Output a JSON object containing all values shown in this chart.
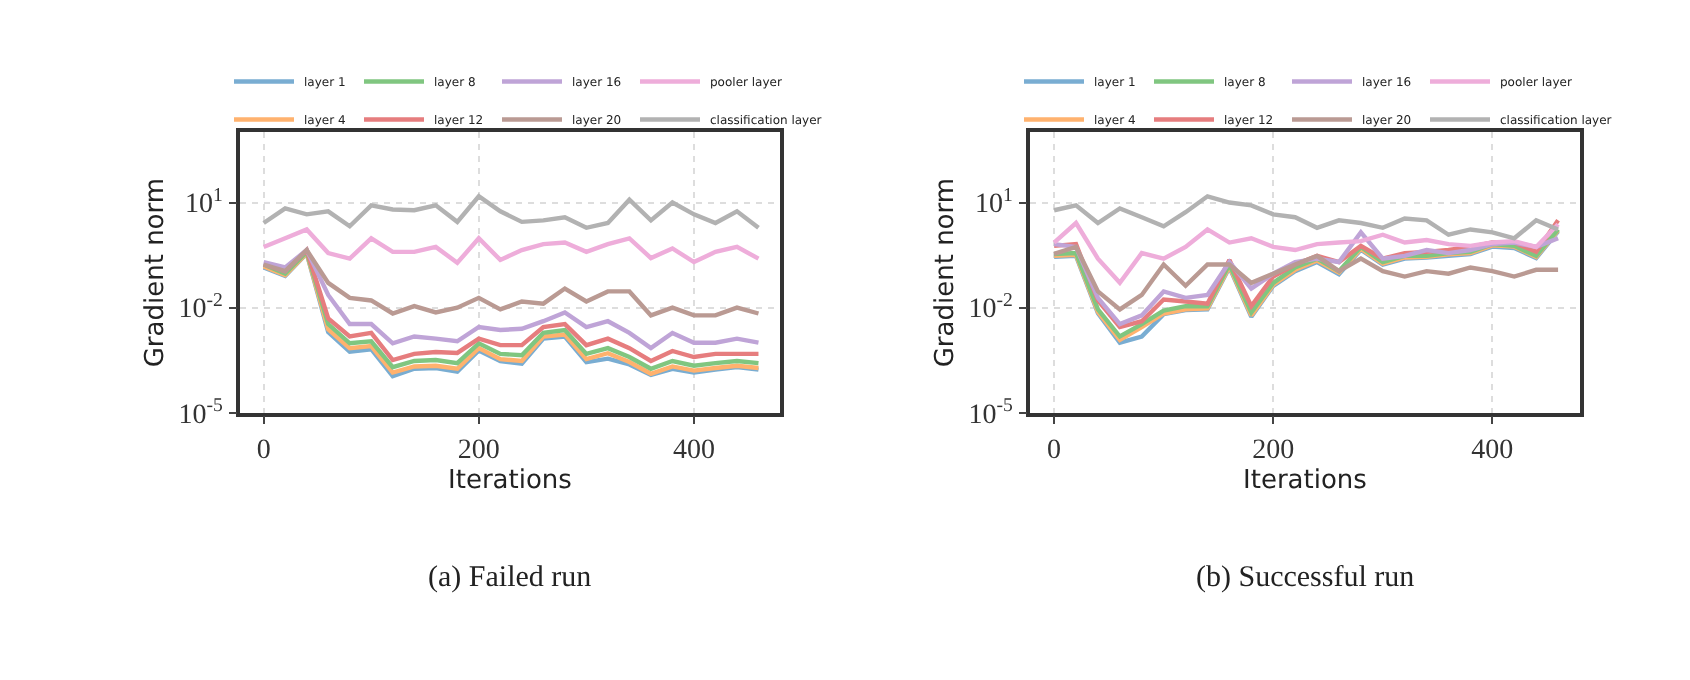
{
  "chart_data": [
    {
      "type": "line",
      "title": "(a) Failed run",
      "xlabel": "Iterations",
      "ylabel": "Gradient norm",
      "log": "y",
      "grid": true,
      "legend": "top",
      "x": [
        0,
        20,
        40,
        60,
        80,
        100,
        120,
        140,
        160,
        180,
        200,
        220,
        240,
        260,
        280,
        300,
        320,
        340,
        360,
        380,
        400,
        420,
        440,
        460
      ],
      "xlim": [
        -22,
        480
      ],
      "xticks": [
        0,
        200,
        400
      ],
      "ylim": [
        1e-05,
        1000
      ],
      "yticks": [
        {
          "value": 1e-05,
          "label": "10$^{-5}$"
        },
        {
          "value": 0.01,
          "label": "10$^{-2}$"
        },
        {
          "value": 10,
          "label": "10$^{1}$"
        }
      ],
      "series": [
        {
          "name": "layer 1",
          "color": "#79add2",
          "values": [
            0.14,
            0.08,
            0.35,
            0.002,
            0.00055,
            0.00065,
            0.00011,
            0.00018,
            0.00019,
            0.00015,
            0.0006,
            0.0003,
            0.00025,
            0.0013,
            0.0015,
            0.00028,
            0.00035,
            0.00024,
            0.00012,
            0.00018,
            0.00014,
            0.00017,
            0.0002,
            0.00017
          ]
        },
        {
          "name": "layer 4",
          "color": "#ffb26e",
          "values": [
            0.15,
            0.085,
            0.36,
            0.0024,
            0.0007,
            0.0008,
            0.00014,
            0.00021,
            0.00022,
            0.00018,
            0.0007,
            0.00034,
            0.0003,
            0.0015,
            0.0017,
            0.00034,
            0.0005,
            0.00028,
            0.00013,
            0.00021,
            0.00016,
            0.00019,
            0.00022,
            0.00019
          ]
        },
        {
          "name": "layer 8",
          "color": "#80c680",
          "values": [
            0.17,
            0.093,
            0.39,
            0.0034,
            0.00096,
            0.0011,
            0.0002,
            0.0003,
            0.00032,
            0.00026,
            0.00096,
            0.00048,
            0.00044,
            0.0019,
            0.0023,
            0.00048,
            0.0007,
            0.00039,
            0.00018,
            0.0003,
            0.00022,
            0.00026,
            0.0003,
            0.00026
          ]
        },
        {
          "name": "layer 12",
          "color": "#e67d7e",
          "values": [
            0.17,
            0.11,
            0.44,
            0.0049,
            0.0015,
            0.0019,
            0.00032,
            0.00048,
            0.00054,
            0.00051,
            0.0013,
            0.00085,
            0.00085,
            0.0028,
            0.0034,
            0.00085,
            0.0013,
            0.0007,
            0.0003,
            0.00058,
            0.00039,
            0.00048,
            0.00048,
            0.00048
          ]
        },
        {
          "name": "layer 16",
          "color": "#bfa4d7",
          "values": [
            0.2,
            0.14,
            0.44,
            0.023,
            0.0034,
            0.0034,
            0.00096,
            0.0015,
            0.0013,
            0.0011,
            0.0028,
            0.0023,
            0.0025,
            0.0041,
            0.0073,
            0.0028,
            0.0041,
            0.0019,
            0.0007,
            0.0019,
            0.001,
            0.001,
            0.0013,
            0.001
          ]
        },
        {
          "name": "layer 20",
          "color": "#ba9a93",
          "values": [
            0.17,
            0.11,
            0.44,
            0.051,
            0.019,
            0.016,
            0.0068,
            0.011,
            0.0073,
            0.01,
            0.019,
            0.0089,
            0.015,
            0.013,
            0.035,
            0.015,
            0.029,
            0.029,
            0.006,
            0.01,
            0.006,
            0.006,
            0.01,
            0.0068
          ]
        },
        {
          "name": "pooler layer",
          "color": "#eeadda",
          "values": [
            0.54,
            0.95,
            1.7,
            0.36,
            0.25,
            0.95,
            0.39,
            0.39,
            0.54,
            0.19,
            0.95,
            0.23,
            0.44,
            0.65,
            0.72,
            0.39,
            0.65,
            0.95,
            0.26,
            0.49,
            0.2,
            0.39,
            0.54,
            0.25
          ]
        },
        {
          "name": "classification layer",
          "color": "#b2b2b2",
          "values": [
            2.6,
            6.8,
            4.6,
            5.6,
            2.1,
            8.3,
            6.3,
            6.0,
            8.3,
            2.8,
            15,
            5.6,
            2.8,
            3.1,
            3.8,
            1.9,
            2.6,
            12,
            3.1,
            10,
            4.6,
            2.6,
            5.6,
            1.9
          ]
        }
      ]
    },
    {
      "type": "line",
      "title": "(b) Successful run",
      "xlabel": "Iterations",
      "ylabel": "Gradient norm",
      "log": "y",
      "grid": true,
      "legend": "top",
      "x": [
        0,
        20,
        40,
        60,
        80,
        100,
        120,
        140,
        160,
        180,
        200,
        220,
        240,
        260,
        280,
        300,
        320,
        340,
        360,
        380,
        400,
        420,
        440,
        460
      ],
      "xlim": [
        -22,
        480
      ],
      "xticks": [
        0,
        200,
        400
      ],
      "ylim": [
        1e-05,
        1000
      ],
      "yticks": [
        {
          "value": 1e-05,
          "label": "10$^{-5}$"
        },
        {
          "value": 0.01,
          "label": "10$^{-2}$"
        },
        {
          "value": 10,
          "label": "10$^{1}$"
        }
      ],
      "series": [
        {
          "name": "layer 1",
          "color": "#79add2",
          "values": [
            0.28,
            0.3,
            0.007,
            0.001,
            0.0015,
            0.0065,
            0.0085,
            0.009,
            0.14,
            0.0055,
            0.042,
            0.11,
            0.2,
            0.09,
            0.45,
            0.17,
            0.25,
            0.27,
            0.3,
            0.34,
            0.55,
            0.5,
            0.26,
            1.5
          ]
        },
        {
          "name": "layer 4",
          "color": "#ffb26e",
          "values": [
            0.3,
            0.32,
            0.0075,
            0.0012,
            0.0028,
            0.0068,
            0.009,
            0.0095,
            0.15,
            0.006,
            0.045,
            0.12,
            0.22,
            0.1,
            0.48,
            0.18,
            0.27,
            0.28,
            0.33,
            0.36,
            0.6,
            0.55,
            0.28,
            1.6
          ]
        },
        {
          "name": "layer 8",
          "color": "#80c680",
          "values": [
            0.34,
            0.36,
            0.0089,
            0.0015,
            0.0034,
            0.0082,
            0.011,
            0.011,
            0.17,
            0.0073,
            0.051,
            0.14,
            0.25,
            0.11,
            0.54,
            0.2,
            0.3,
            0.3,
            0.36,
            0.39,
            0.65,
            0.58,
            0.3,
            1.7
          ]
        },
        {
          "name": "layer 12",
          "color": "#e67d7e",
          "values": [
            0.58,
            0.65,
            0.016,
            0.0028,
            0.0041,
            0.017,
            0.015,
            0.013,
            0.23,
            0.011,
            0.077,
            0.17,
            0.3,
            0.2,
            0.58,
            0.25,
            0.36,
            0.39,
            0.44,
            0.54,
            0.72,
            0.72,
            0.39,
            3.1
          ]
        },
        {
          "name": "layer 16",
          "color": "#bfa4d7",
          "values": [
            0.65,
            0.54,
            0.019,
            0.0034,
            0.006,
            0.029,
            0.019,
            0.023,
            0.2,
            0.035,
            0.093,
            0.2,
            0.25,
            0.2,
            1.4,
            0.25,
            0.3,
            0.44,
            0.36,
            0.44,
            0.65,
            0.72,
            0.54,
            0.95
          ]
        },
        {
          "name": "layer 20",
          "color": "#ba9a93",
          "values": [
            0.34,
            0.54,
            0.029,
            0.0089,
            0.023,
            0.17,
            0.042,
            0.17,
            0.17,
            0.051,
            0.093,
            0.17,
            0.3,
            0.11,
            0.25,
            0.11,
            0.077,
            0.11,
            0.093,
            0.14,
            0.11,
            0.077,
            0.12,
            0.12
          ]
        },
        {
          "name": "pooler layer",
          "color": "#eeadda",
          "values": [
            0.72,
            2.6,
            0.25,
            0.051,
            0.36,
            0.25,
            0.54,
            1.7,
            0.72,
            0.95,
            0.54,
            0.44,
            0.65,
            0.72,
            0.79,
            1.2,
            0.72,
            0.85,
            0.65,
            0.58,
            0.72,
            0.79,
            0.54,
            2.4
          ]
        },
        {
          "name": "classification layer",
          "color": "#b2b2b2",
          "values": [
            6.0,
            8.3,
            2.6,
            6.8,
            3.8,
            2.1,
            5.3,
            15,
            10,
            8.3,
            4.6,
            3.8,
            1.9,
            3.1,
            2.6,
            1.9,
            3.5,
            3.1,
            1.2,
            1.7,
            1.4,
            0.95,
            3.1,
            1.7
          ]
        }
      ]
    }
  ]
}
